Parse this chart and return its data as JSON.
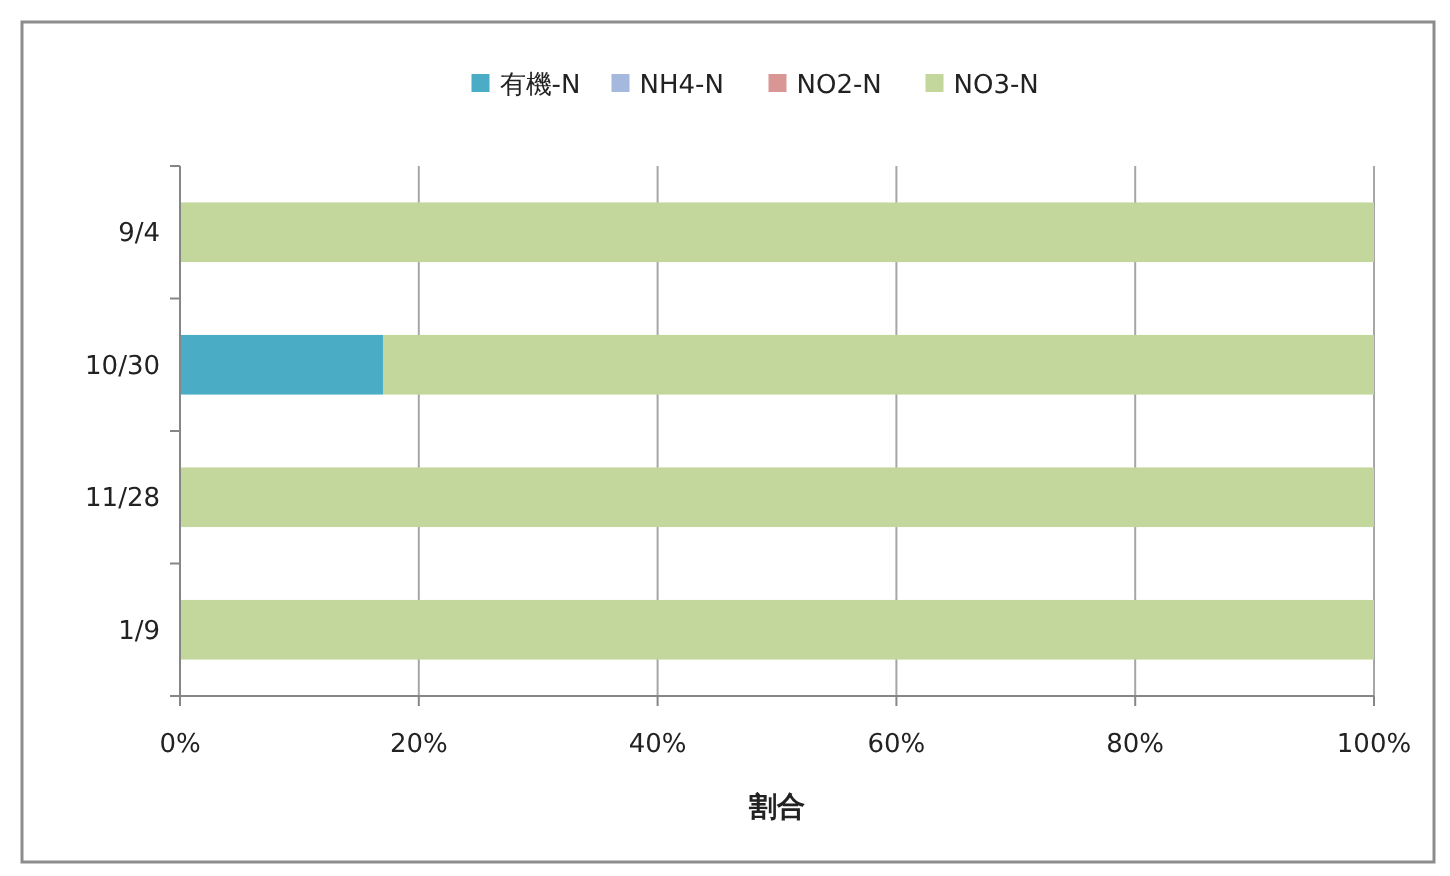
{
  "chart_data": {
    "type": "bar",
    "orientation": "horizontal",
    "stacked": true,
    "xlabel": "割合",
    "categories": [
      "9/4",
      "10/30",
      "11/28",
      "1/9"
    ],
    "series": [
      {
        "name": "有機-N",
        "color": "#4bacc6",
        "values": [
          0,
          17,
          0,
          0
        ]
      },
      {
        "name": "NH4-N",
        "color": "#a5b8de",
        "values": [
          0,
          0,
          0,
          0
        ]
      },
      {
        "name": "NO2-N",
        "color": "#d99694",
        "values": [
          0,
          0,
          0,
          0
        ]
      },
      {
        "name": "NO3-N",
        "color": "#c3d69b",
        "values": [
          100,
          83,
          100,
          100
        ]
      }
    ],
    "xlim": [
      0,
      100
    ],
    "xticks": [
      {
        "value": 0,
        "label": "0%"
      },
      {
        "value": 20,
        "label": "20%"
      },
      {
        "value": 40,
        "label": "40%"
      },
      {
        "value": 60,
        "label": "60%"
      },
      {
        "value": 80,
        "label": "80%"
      },
      {
        "value": 100,
        "label": "100%"
      }
    ],
    "grid": "x",
    "legend": "top"
  }
}
